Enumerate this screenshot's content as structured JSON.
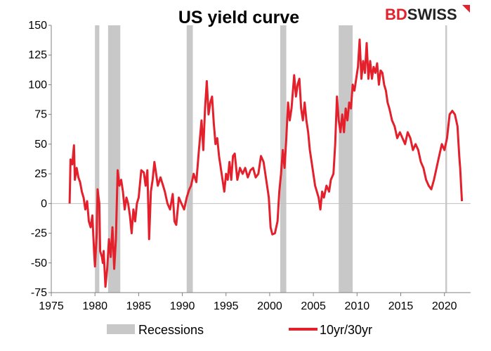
{
  "brand": {
    "name_part1": "BD",
    "name_part2": "SWISS",
    "primary_color": "#e3202b",
    "secondary_color": "#222222"
  },
  "chart_data": {
    "type": "line",
    "title": "US yield curve",
    "xlabel": "",
    "ylabel": "",
    "xlim": [
      1975,
      2023
    ],
    "ylim": [
      -75,
      150
    ],
    "x_ticks": [
      1975,
      1980,
      1985,
      1990,
      1995,
      2000,
      2005,
      2010,
      2015,
      2020
    ],
    "y_ticks": [
      -75,
      -50,
      -25,
      0,
      25,
      50,
      75,
      100,
      125,
      150
    ],
    "grid": false,
    "legend_position": "bottom",
    "recessions": {
      "name": "Recessions",
      "color": "#c8c8c8",
      "periods": [
        [
          1980.0,
          1980.5
        ],
        [
          1981.5,
          1982.9
        ],
        [
          1990.5,
          1991.2
        ],
        [
          2001.2,
          2001.9
        ],
        [
          2007.9,
          2009.5
        ],
        [
          2020.1,
          2020.3
        ]
      ]
    },
    "series": [
      {
        "name": "10yr/30yr",
        "color": "#e3202b",
        "points": [
          [
            1977.1,
            0
          ],
          [
            1977.2,
            37
          ],
          [
            1977.4,
            33
          ],
          [
            1977.6,
            49
          ],
          [
            1977.7,
            20
          ],
          [
            1977.9,
            30
          ],
          [
            1978.1,
            22
          ],
          [
            1978.3,
            18
          ],
          [
            1978.5,
            10
          ],
          [
            1978.7,
            5
          ],
          [
            1978.9,
            -5
          ],
          [
            1979.1,
            2
          ],
          [
            1979.3,
            -15
          ],
          [
            1979.5,
            -20
          ],
          [
            1979.7,
            -10
          ],
          [
            1979.9,
            -40
          ],
          [
            1980.0,
            -53
          ],
          [
            1980.2,
            -25
          ],
          [
            1980.3,
            12
          ],
          [
            1980.5,
            0
          ],
          [
            1980.6,
            -40
          ],
          [
            1980.8,
            -45
          ],
          [
            1980.9,
            -50
          ],
          [
            1981.0,
            -40
          ],
          [
            1981.2,
            -70
          ],
          [
            1981.4,
            -55
          ],
          [
            1981.6,
            -30
          ],
          [
            1981.8,
            -45
          ],
          [
            1982.0,
            -20
          ],
          [
            1982.2,
            -55
          ],
          [
            1982.4,
            -30
          ],
          [
            1982.6,
            28
          ],
          [
            1982.8,
            15
          ],
          [
            1983.0,
            20
          ],
          [
            1983.2,
            10
          ],
          [
            1983.4,
            -5
          ],
          [
            1983.6,
            5
          ],
          [
            1983.8,
            0
          ],
          [
            1984.0,
            -10
          ],
          [
            1984.2,
            -25
          ],
          [
            1984.4,
            -5
          ],
          [
            1984.6,
            -15
          ],
          [
            1984.8,
            0
          ],
          [
            1985.0,
            5
          ],
          [
            1985.3,
            28
          ],
          [
            1985.6,
            26
          ],
          [
            1985.8,
            15
          ],
          [
            1986.0,
            28
          ],
          [
            1986.2,
            -30
          ],
          [
            1986.4,
            10
          ],
          [
            1986.6,
            20
          ],
          [
            1986.8,
            35
          ],
          [
            1987.0,
            25
          ],
          [
            1987.2,
            15
          ],
          [
            1987.5,
            22
          ],
          [
            1987.8,
            15
          ],
          [
            1988.0,
            10
          ],
          [
            1988.3,
            0
          ],
          [
            1988.6,
            -5
          ],
          [
            1988.9,
            8
          ],
          [
            1989.1,
            -15
          ],
          [
            1989.3,
            -18
          ],
          [
            1989.6,
            5
          ],
          [
            1989.9,
            0
          ],
          [
            1990.2,
            -5
          ],
          [
            1990.5,
            5
          ],
          [
            1990.8,
            12
          ],
          [
            1991.0,
            15
          ],
          [
            1991.3,
            25
          ],
          [
            1991.6,
            18
          ],
          [
            1991.9,
            45
          ],
          [
            1992.2,
            70
          ],
          [
            1992.4,
            45
          ],
          [
            1992.6,
            80
          ],
          [
            1992.8,
            103
          ],
          [
            1993.0,
            75
          ],
          [
            1993.2,
            85
          ],
          [
            1993.4,
            90
          ],
          [
            1993.6,
            68
          ],
          [
            1993.8,
            50
          ],
          [
            1994.0,
            55
          ],
          [
            1994.2,
            40
          ],
          [
            1994.4,
            30
          ],
          [
            1994.6,
            20
          ],
          [
            1994.8,
            10
          ],
          [
            1995.0,
            25
          ],
          [
            1995.2,
            20
          ],
          [
            1995.4,
            35
          ],
          [
            1995.6,
            20
          ],
          [
            1995.8,
            40
          ],
          [
            1996.0,
            42
          ],
          [
            1996.3,
            20
          ],
          [
            1996.6,
            30
          ],
          [
            1996.9,
            25
          ],
          [
            1997.2,
            30
          ],
          [
            1997.5,
            22
          ],
          [
            1997.8,
            28
          ],
          [
            1998.1,
            30
          ],
          [
            1998.4,
            22
          ],
          [
            1998.7,
            25
          ],
          [
            1999.0,
            40
          ],
          [
            1999.3,
            35
          ],
          [
            1999.6,
            20
          ],
          [
            1999.9,
            5
          ],
          [
            2000.1,
            -20
          ],
          [
            2000.3,
            -26
          ],
          [
            2000.6,
            -25
          ],
          [
            2000.9,
            -15
          ],
          [
            2001.1,
            10
          ],
          [
            2001.3,
            25
          ],
          [
            2001.5,
            45
          ],
          [
            2001.7,
            30
          ],
          [
            2001.9,
            55
          ],
          [
            2002.1,
            85
          ],
          [
            2002.3,
            70
          ],
          [
            2002.5,
            80
          ],
          [
            2002.8,
            108
          ],
          [
            2003.0,
            90
          ],
          [
            2003.2,
            100
          ],
          [
            2003.4,
            105
          ],
          [
            2003.6,
            80
          ],
          [
            2003.8,
            70
          ],
          [
            2004.0,
            85
          ],
          [
            2004.2,
            70
          ],
          [
            2004.4,
            60
          ],
          [
            2004.6,
            45
          ],
          [
            2004.8,
            35
          ],
          [
            2005.0,
            25
          ],
          [
            2005.2,
            15
          ],
          [
            2005.4,
            10
          ],
          [
            2005.6,
            5
          ],
          [
            2005.8,
            -5
          ],
          [
            2006.0,
            10
          ],
          [
            2006.2,
            5
          ],
          [
            2006.5,
            15
          ],
          [
            2006.8,
            10
          ],
          [
            2007.0,
            20
          ],
          [
            2007.3,
            25
          ],
          [
            2007.5,
            50
          ],
          [
            2007.7,
            90
          ],
          [
            2007.9,
            70
          ],
          [
            2008.1,
            60
          ],
          [
            2008.3,
            75
          ],
          [
            2008.5,
            60
          ],
          [
            2008.7,
            80
          ],
          [
            2008.9,
            70
          ],
          [
            2009.1,
            85
          ],
          [
            2009.3,
            80
          ],
          [
            2009.5,
            100
          ],
          [
            2009.7,
            95
          ],
          [
            2009.9,
            105
          ],
          [
            2010.1,
            115
          ],
          [
            2010.3,
            138
          ],
          [
            2010.5,
            105
          ],
          [
            2010.7,
            120
          ],
          [
            2010.9,
            110
          ],
          [
            2011.1,
            135
          ],
          [
            2011.3,
            105
          ],
          [
            2011.5,
            120
          ],
          [
            2011.7,
            105
          ],
          [
            2011.9,
            115
          ],
          [
            2012.1,
            110
          ],
          [
            2012.3,
            118
          ],
          [
            2012.5,
            100
          ],
          [
            2012.7,
            112
          ],
          [
            2012.9,
            110
          ],
          [
            2013.1,
            100
          ],
          [
            2013.3,
            95
          ],
          [
            2013.5,
            85
          ],
          [
            2013.7,
            80
          ],
          [
            2014.0,
            70
          ],
          [
            2014.3,
            65
          ],
          [
            2014.6,
            55
          ],
          [
            2014.9,
            60
          ],
          [
            2015.2,
            55
          ],
          [
            2015.5,
            50
          ],
          [
            2015.8,
            60
          ],
          [
            2016.1,
            55
          ],
          [
            2016.4,
            45
          ],
          [
            2016.7,
            50
          ],
          [
            2017.0,
            45
          ],
          [
            2017.3,
            35
          ],
          [
            2017.6,
            30
          ],
          [
            2017.9,
            20
          ],
          [
            2018.2,
            15
          ],
          [
            2018.5,
            12
          ],
          [
            2018.8,
            20
          ],
          [
            2019.1,
            30
          ],
          [
            2019.4,
            40
          ],
          [
            2019.7,
            50
          ],
          [
            2020.0,
            45
          ],
          [
            2020.3,
            55
          ],
          [
            2020.6,
            75
          ],
          [
            2020.9,
            78
          ],
          [
            2021.2,
            75
          ],
          [
            2021.5,
            65
          ],
          [
            2021.7,
            40
          ],
          [
            2021.8,
            30
          ],
          [
            2022.0,
            2
          ]
        ]
      }
    ]
  }
}
